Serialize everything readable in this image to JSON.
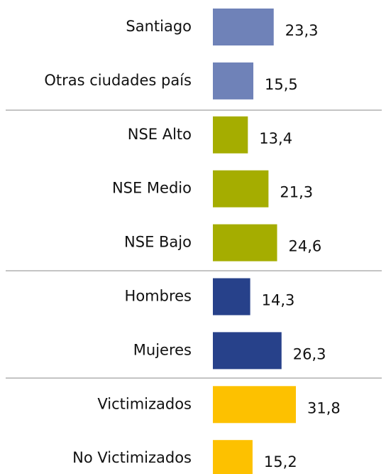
{
  "chart_data": {
    "type": "bar",
    "orientation": "horizontal",
    "categories": [
      "Santiago",
      "Otras ciudades país",
      "NSE Alto",
      "NSE Medio",
      "NSE Bajo",
      "Hombres",
      "Mujeres",
      "Victimizados",
      "No Victimizados"
    ],
    "values": [
      23.3,
      15.5,
      13.4,
      21.3,
      24.6,
      14.3,
      26.3,
      31.8,
      15.2
    ],
    "value_labels": [
      "23,3",
      "15,5",
      "13,4",
      "21,3",
      "24,6",
      "14,3",
      "26,3",
      "31,8",
      "15,2"
    ],
    "colors": [
      "#6f82b8",
      "#6f82b8",
      "#a5ad00",
      "#a5ad00",
      "#a5ad00",
      "#27418a",
      "#27418a",
      "#fdc100",
      "#fdc100"
    ]
  }
}
